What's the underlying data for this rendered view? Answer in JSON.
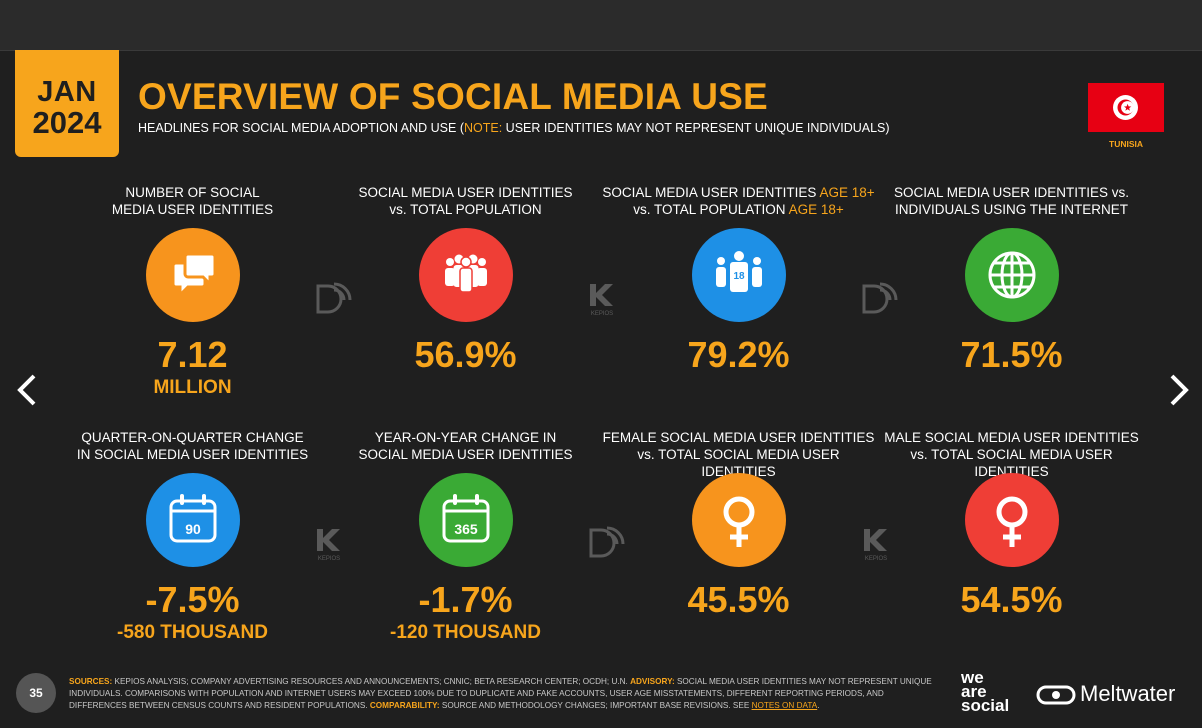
{
  "header": {
    "month": "JAN",
    "year": "2024",
    "title": "OVERVIEW OF SOCIAL MEDIA USE",
    "subtitle_main": "HEADLINES FOR SOCIAL MEDIA ADOPTION AND USE (",
    "subtitle_note": "NOTE:",
    "subtitle_rest": " USER IDENTITIES MAY NOT REPRESENT UNIQUE INDIVIDUALS)",
    "country": "TUNISIA"
  },
  "cards": [
    {
      "label1": "NUMBER OF SOCIAL",
      "label2": "MEDIA USER IDENTITIES",
      "value": "7.12",
      "sub": "MILLION",
      "icon": "speech-bubbles-icon",
      "color": "#f7941d"
    },
    {
      "label1": "SOCIAL MEDIA USER IDENTITIES",
      "label2": "vs. TOTAL POPULATION",
      "value": "56.9%",
      "sub": "",
      "icon": "people-group-icon",
      "color": "#ef3e36"
    },
    {
      "label1a": "SOCIAL MEDIA USER IDENTITIES ",
      "label1b": "AGE 18+",
      "label2a": "vs. TOTAL POPULATION ",
      "label2b": "AGE 18+",
      "value": "79.2%",
      "sub": "",
      "icon": "adults-18-icon",
      "color": "#1e90e6"
    },
    {
      "label1": "SOCIAL MEDIA USER IDENTITIES vs.",
      "label2": "INDIVIDUALS USING THE INTERNET",
      "value": "71.5%",
      "sub": "",
      "icon": "globe-icon",
      "color": "#3aaa35"
    },
    {
      "label1": "QUARTER-ON-QUARTER CHANGE",
      "label2": "IN SOCIAL MEDIA USER IDENTITIES",
      "value": "-7.5%",
      "sub": "-580 THOUSAND",
      "icon": "calendar-90-icon",
      "color": "#1e90e6",
      "calnum": "90"
    },
    {
      "label1": "YEAR-ON-YEAR CHANGE IN",
      "label2": "SOCIAL MEDIA USER IDENTITIES",
      "value": "-1.7%",
      "sub": "-120 THOUSAND",
      "icon": "calendar-365-icon",
      "color": "#3aaa35",
      "calnum": "365"
    },
    {
      "label1": "FEMALE SOCIAL MEDIA USER IDENTITIES",
      "label2": "vs. TOTAL SOCIAL MEDIA USER IDENTITIES",
      "value": "45.5%",
      "sub": "",
      "icon": "female-symbol-icon",
      "color": "#f7941d"
    },
    {
      "label1": "MALE SOCIAL MEDIA USER IDENTITIES",
      "label2": "vs. TOTAL SOCIAL MEDIA USER IDENTITIES",
      "value": "54.5%",
      "sub": "",
      "icon": "female-symbol-icon",
      "color": "#ef3e36"
    }
  ],
  "watermarks": {
    "kepios": "KEPIOS"
  },
  "footer": {
    "page_number": "35",
    "sources_label": "SOURCES:",
    "sources_text": " KEPIOS ANALYSIS; COMPANY ADVERTISING RESOURCES AND ANNOUNCEMENTS; CNNIC; BETA RESEARCH CENTER; OCDH; U.N. ",
    "advisory_label": "ADVISORY:",
    "advisory_text": " SOCIAL MEDIA USER IDENTITIES MAY NOT REPRESENT UNIQUE INDIVIDUALS. COMPARISONS WITH POPULATION AND INTERNET USERS MAY EXCEED 100% DUE TO DUPLICATE AND FAKE ACCOUNTS, USER AGE MISSTATEMENTS, DIFFERENT REPORTING PERIODS, AND DIFFERENCES BETWEEN CENSUS COUNTS AND RESIDENT POPULATIONS. ",
    "comparability_label": "COMPARABILITY:",
    "comparability_text": " SOURCE AND METHODOLOGY CHANGES; IMPORTANT BASE REVISIONS. SEE ",
    "notes_link": "NOTES ON DATA",
    "notes_end": ".",
    "brand_we1": "we",
    "brand_we2": "are",
    "brand_we3": "social",
    "brand_meltwater": "Meltwater"
  },
  "colors": {
    "accent": "#f7a51c",
    "background": "#1f1f1f"
  }
}
